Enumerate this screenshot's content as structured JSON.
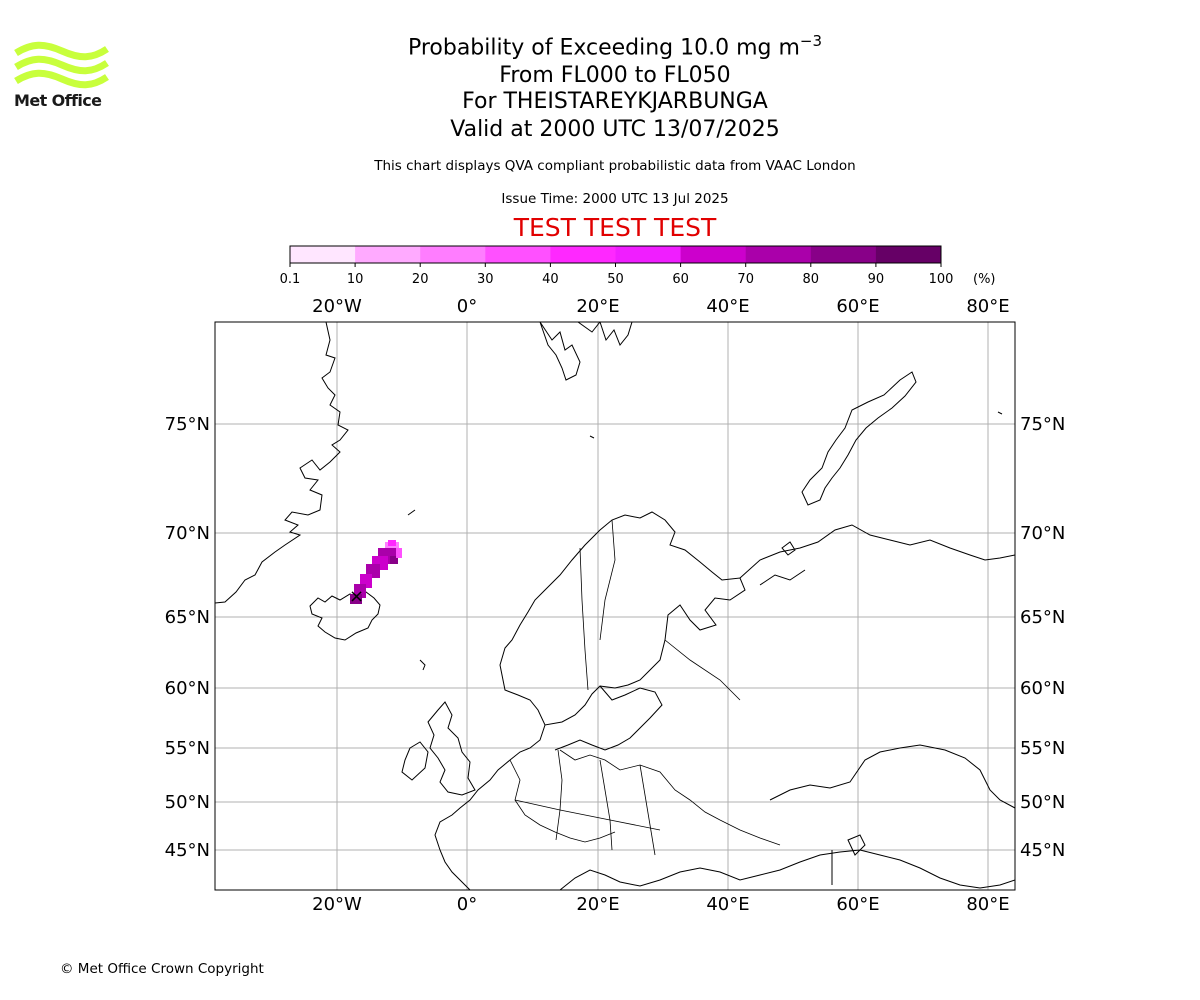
{
  "logo": {
    "text": "Met Office",
    "color": "#c8ff3c",
    "icon": "met-office-wave-logo"
  },
  "title": {
    "line1_main": "Probability of Exceeding 10.0 mg m",
    "line1_sup": "−3",
    "line2": "From FL000 to FL050",
    "line3": "For THEISTAREYKJARBUNGA",
    "line4": "Valid at 2000 UTC 13/07/2025"
  },
  "subtitle": "This chart displays QVA compliant probabilistic data from VAAC London",
  "issue_time": "Issue Time: 2000 UTC 13 Jul 2025",
  "test_banner": "TEST TEST TEST",
  "colorbar": {
    "unit": "(%)",
    "ticks": [
      "0.1",
      "10",
      "20",
      "30",
      "40",
      "50",
      "60",
      "70",
      "80",
      "90",
      "100"
    ],
    "colors": [
      "#ffe6ff",
      "#ffc8ff",
      "#ffaaff",
      "#ff7dff",
      "#ff50ff",
      "#ff28ff",
      "#f01eff",
      "#cc00cc",
      "#aa00aa",
      "#880088",
      "#660066"
    ]
  },
  "map": {
    "lon_labels": [
      "20°W",
      "0°",
      "20°E",
      "40°E",
      "60°E",
      "80°E"
    ],
    "lat_labels": [
      "75°N",
      "70°N",
      "65°N",
      "60°N",
      "55°N",
      "50°N",
      "45°N"
    ],
    "gridline_color": "#b0b0b0",
    "volcano_marker": "×",
    "plume_color": "#cc00cc"
  },
  "footer": "© Met Office Crown Copyright"
}
